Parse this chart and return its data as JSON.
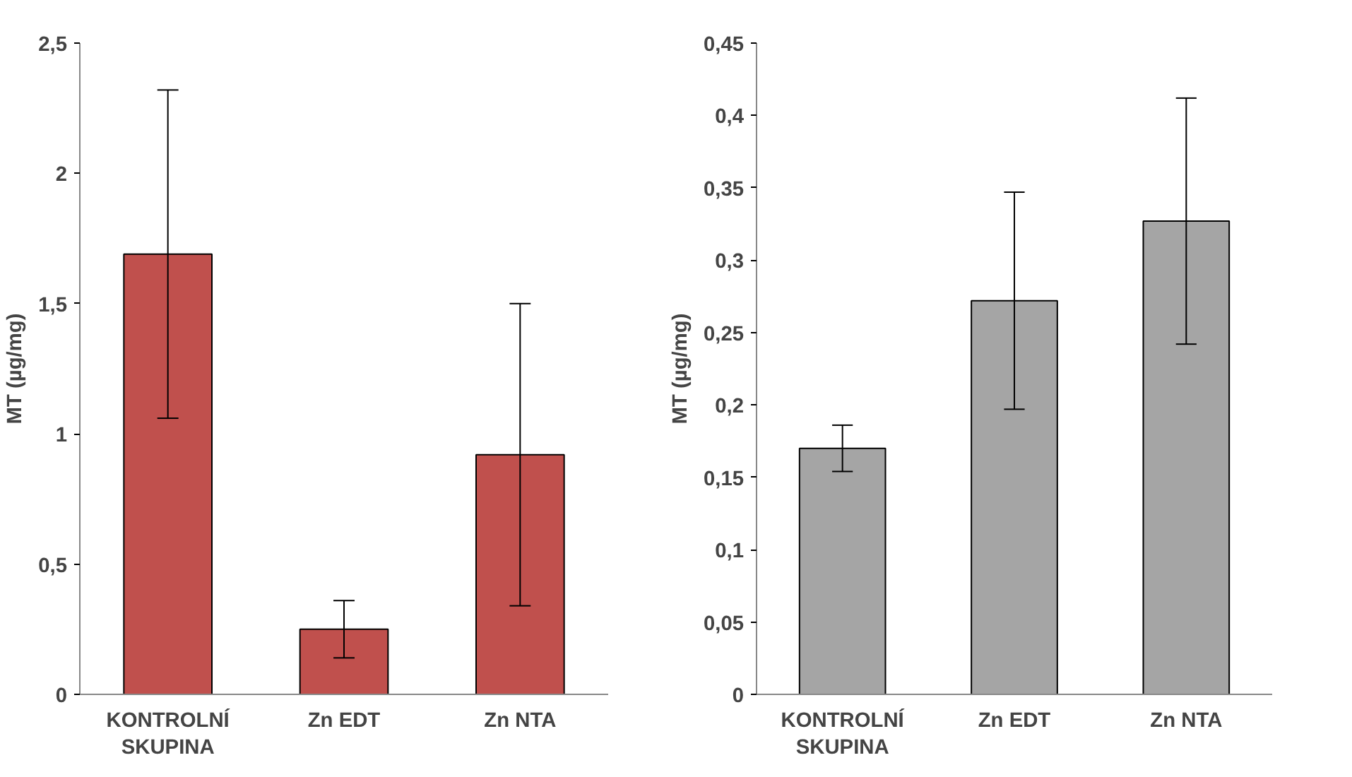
{
  "chart_data": [
    {
      "type": "bar",
      "ylabel": "MT (µg/mg)",
      "categories": [
        "KONTROLNÍ\nSKUPINA",
        "Zn EDT",
        "Zn NTA"
      ],
      "series": [
        {
          "color": "#c0504d",
          "values": [
            1.69,
            0.25,
            0.92
          ],
          "errors": [
            0.63,
            0.11,
            0.58
          ]
        }
      ],
      "ylim": [
        0,
        2.5
      ],
      "yticks": [
        0,
        {
          "value": 0.5,
          "label": "0,5"
        },
        1,
        {
          "value": 1.5,
          "label": "1,5"
        },
        2,
        {
          "value": 2.5,
          "label": "2,5"
        }
      ]
    },
    {
      "type": "bar",
      "ylabel": "MT (µg/mg)",
      "categories": [
        "KONTROLNÍ\nSKUPINA",
        "Zn EDT",
        "Zn NTA"
      ],
      "series": [
        {
          "color": "#a5a5a5",
          "values": [
            0.17,
            0.272,
            0.327
          ],
          "errors": [
            0.016,
            0.075,
            0.085
          ]
        }
      ],
      "ylim": [
        0,
        0.45
      ],
      "yticks": [
        0,
        {
          "value": 0.05,
          "label": "0,05"
        },
        {
          "value": 0.1,
          "label": "0,1"
        },
        {
          "value": 0.15,
          "label": "0,15"
        },
        {
          "value": 0.2,
          "label": "0,2"
        },
        {
          "value": 0.25,
          "label": "0,25"
        },
        {
          "value": 0.3,
          "label": "0,3"
        },
        {
          "value": 0.35,
          "label": "0,35"
        },
        {
          "value": 0.4,
          "label": "0,4"
        },
        {
          "value": 0.45,
          "label": "0,45"
        }
      ]
    }
  ]
}
